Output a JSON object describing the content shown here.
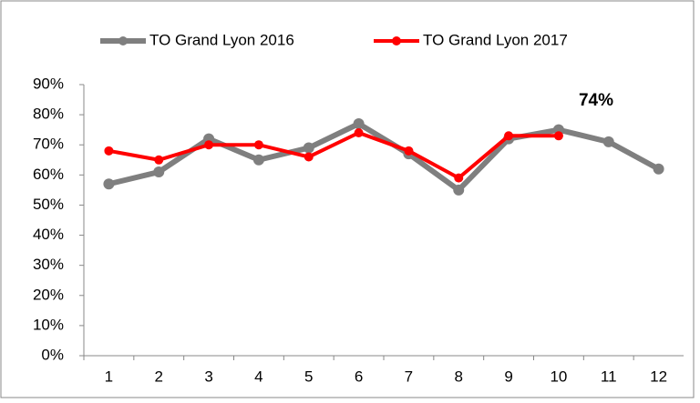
{
  "chart_data": {
    "type": "line",
    "categories": [
      "1",
      "2",
      "3",
      "4",
      "5",
      "6",
      "7",
      "8",
      "9",
      "10",
      "11",
      "12"
    ],
    "series": [
      {
        "name": "TO Grand Lyon 2016",
        "color": "#7f7f7f",
        "values": [
          57,
          61,
          72,
          65,
          69,
          77,
          67,
          55,
          72,
          75,
          71,
          62
        ]
      },
      {
        "name": "TO Grand Lyon 2017",
        "color": "#ff0000",
        "values": [
          68,
          65,
          70,
          70,
          66,
          74,
          68,
          59,
          73,
          73,
          null,
          null
        ]
      }
    ],
    "annotation": "74%",
    "ylim": [
      0,
      90
    ],
    "yticks": [
      {
        "value": 0,
        "label": "0%"
      },
      {
        "value": 10,
        "label": "10%"
      },
      {
        "value": 20,
        "label": "20%"
      },
      {
        "value": 30,
        "label": "30%"
      },
      {
        "value": 40,
        "label": "40%"
      },
      {
        "value": 50,
        "label": "50%"
      },
      {
        "value": 60,
        "label": "60%"
      },
      {
        "value": 70,
        "label": "70%"
      },
      {
        "value": 80,
        "label": "80%"
      },
      {
        "value": 90,
        "label": "90%"
      }
    ],
    "grid": false,
    "legend": "top"
  }
}
